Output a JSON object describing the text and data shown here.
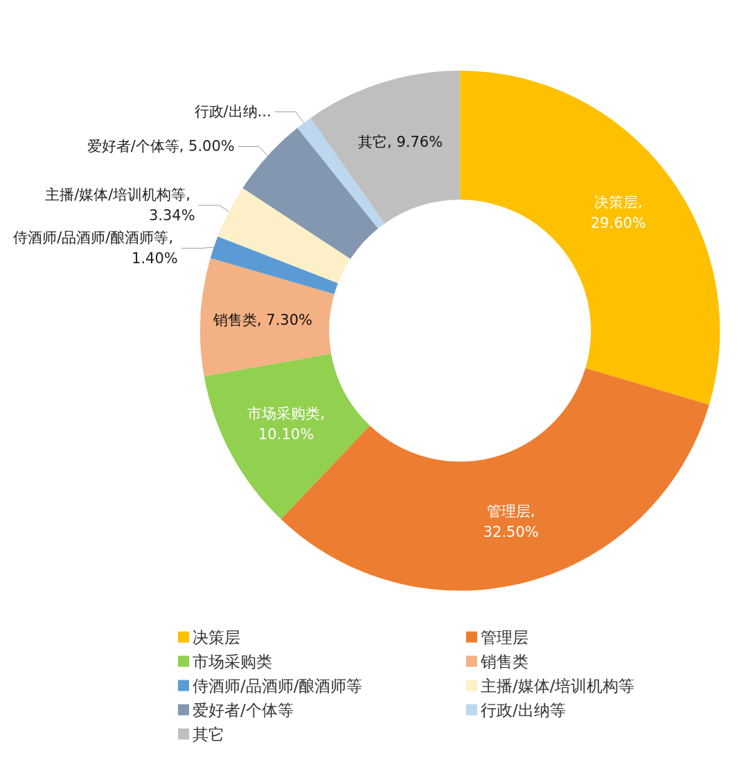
{
  "chart_data": {
    "type": "donut",
    "categories": [
      "决策层",
      "管理层",
      "市场采购类",
      "销售类",
      "侍酒师/品酒师/酿酒师等",
      "主播/媒体/培训机构等",
      "爱好者/个体等",
      "行政/出纳等",
      "其它"
    ],
    "values": [
      29.6,
      32.5,
      10.1,
      7.3,
      1.4,
      3.34,
      5.0,
      1.0,
      9.76
    ],
    "value_labels": [
      "决策层, 29.60%",
      "管理层, 32.50%",
      "市场采购类, 10.10%",
      "销售类, 7.30%",
      "侍酒师/品酒师/酿酒师等, 1.40%",
      "主播/媒体/培训机构等, 3.34%",
      "爱好者/个体等, 5.00%",
      "行政/出纳...",
      "其它, 9.76%"
    ],
    "colors": [
      "#ffc000",
      "#ed7d31",
      "#92d050",
      "#f4b183",
      "#5b9bd5",
      "#fdf0c8",
      "#8497b0",
      "#bdd7ee",
      "#bfbfbf"
    ],
    "legend": "bottom"
  }
}
